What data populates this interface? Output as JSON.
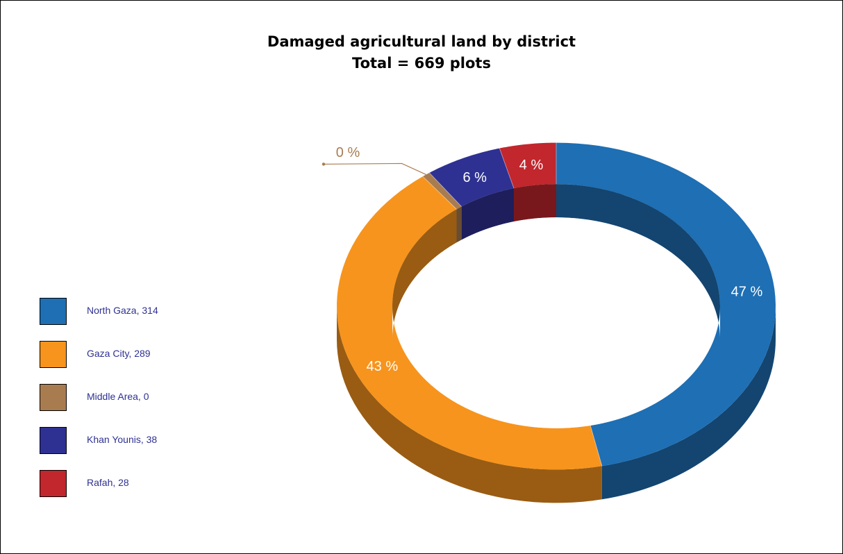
{
  "chart_data": {
    "type": "pie",
    "title_line1": "Damaged agricultural land by district",
    "title_line2": "Total = 669 plots",
    "categories": [
      "North Gaza",
      "Gaza City",
      "Middle Area",
      "Khan Younis",
      "Rafah"
    ],
    "values": [
      314,
      289,
      0,
      38,
      28
    ],
    "percent_labels": [
      "47 %",
      "43 %",
      "0 %",
      "6 %",
      "4 %"
    ],
    "legend_labels": [
      "North Gaza, 314",
      "Gaza City, 289",
      "Middle Area, 0",
      "Khan Younis, 38",
      "Rafah, 28"
    ],
    "colors": [
      "#1e6fb4",
      "#f7941d",
      "#a97c50",
      "#2e3192",
      "#c1272d"
    ],
    "legend_position": "left",
    "style": "3d-donut"
  }
}
